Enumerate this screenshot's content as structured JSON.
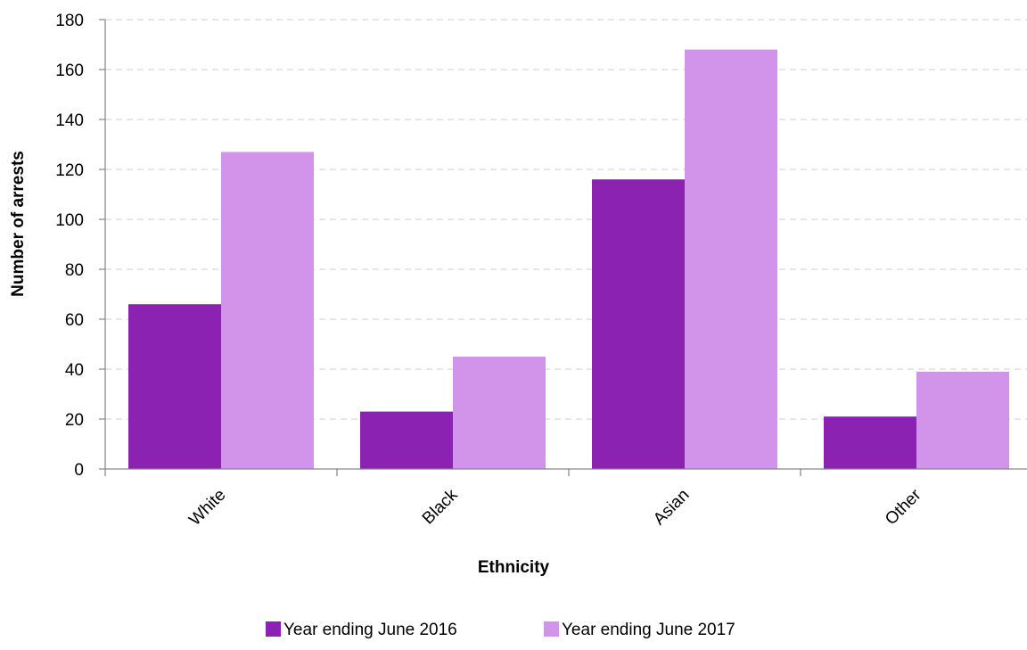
{
  "chart_data": {
    "type": "bar",
    "title": "",
    "xlabel": "Ethnicity",
    "ylabel": "Number of arrests",
    "categories": [
      "White",
      "Black",
      "Asian",
      "Other"
    ],
    "series": [
      {
        "name": "Year ending June 2016",
        "values": [
          66,
          23,
          116,
          21
        ],
        "color": "#8b22b2"
      },
      {
        "name": "Year ending June 2017",
        "values": [
          127,
          45,
          168,
          39
        ],
        "color": "#d294ea"
      }
    ],
    "ylim": [
      0,
      180
    ],
    "yticks": [
      0,
      20,
      40,
      60,
      80,
      100,
      120,
      140,
      160,
      180
    ],
    "grid": true,
    "grid_color": "#d9d9d9",
    "axis_color": "#868686",
    "legend_position": "bottom"
  }
}
